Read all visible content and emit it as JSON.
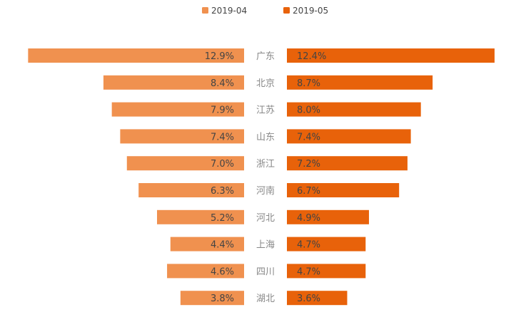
{
  "chart_data": {
    "type": "bar",
    "orientation": "horizontal-butterfly",
    "title": "",
    "categories": [
      "广东",
      "北京",
      "江苏",
      "山东",
      "浙江",
      "河南",
      "河北",
      "上海",
      "四川",
      "湖北"
    ],
    "series": [
      {
        "name": "2019-04",
        "color": "#F0914F",
        "side": "left",
        "values": [
          12.9,
          8.4,
          7.9,
          7.4,
          7.0,
          6.3,
          5.2,
          4.4,
          4.6,
          3.8
        ],
        "labels": [
          "12.9%",
          "8.4%",
          "7.9%",
          "7.4%",
          "7.0%",
          "6.3%",
          "5.2%",
          "4.4%",
          "4.6%",
          "3.8%"
        ]
      },
      {
        "name": "2019-05",
        "color": "#E8620A",
        "side": "right",
        "values": [
          12.4,
          8.7,
          8.0,
          7.4,
          7.2,
          6.7,
          4.9,
          4.7,
          4.7,
          3.6
        ],
        "labels": [
          "12.4%",
          "8.7%",
          "8.0%",
          "7.4%",
          "7.2%",
          "6.7%",
          "4.9%",
          "4.7%",
          "4.7%",
          "3.6%"
        ]
      }
    ],
    "value_unit": "%",
    "legend_position": "top-center",
    "grid": false
  }
}
